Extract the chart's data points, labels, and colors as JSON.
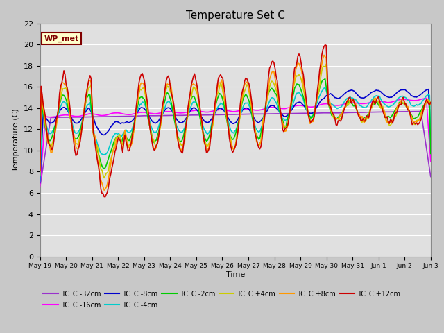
{
  "title": "Temperature Set C",
  "xlabel": "Time",
  "ylabel": "Temperature (C)",
  "ylim": [
    0,
    22
  ],
  "yticks": [
    0,
    2,
    4,
    6,
    8,
    10,
    12,
    14,
    16,
    18,
    20,
    22
  ],
  "plot_bg_color": "#e0e0e0",
  "fig_bg_color": "#c8c8c8",
  "annotation_text": "WP_met",
  "annotation_box_color": "#ffffcc",
  "annotation_border_color": "#800000",
  "series_colors": {
    "TC_C -32cm": "#9932cc",
    "TC_C -16cm": "#ff00ff",
    "TC_C -8cm": "#0000cc",
    "TC_C -4cm": "#00cccc",
    "TC_C -2cm": "#00cc00",
    "TC_C +4cm": "#cccc00",
    "TC_C +8cm": "#ff9900",
    "TC_C +12cm": "#cc0000"
  },
  "x_tick_labels": [
    "May 19",
    "May 20",
    "May 21",
    "May 22",
    "May 23",
    "May 24",
    "May 25",
    "May 26",
    "May 27",
    "May 28",
    "May 29",
    "May 30",
    "May 31",
    "Jun 1",
    "Jun 2",
    "Jun 3"
  ]
}
